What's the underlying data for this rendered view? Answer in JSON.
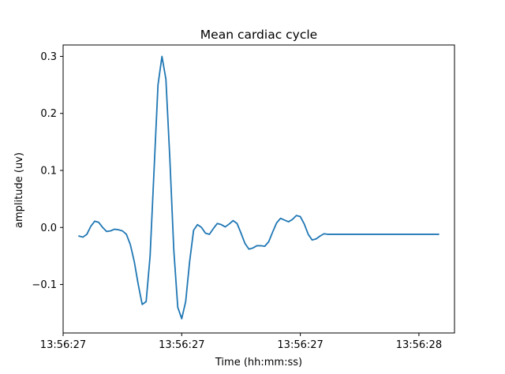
{
  "chart_data": {
    "type": "line",
    "title": "Mean cardiac cycle",
    "xlabel": "Time (hh:mm:ss)",
    "ylabel": "amplitude (uv)",
    "x_tick_labels": [
      "13:56:27",
      "13:56:27",
      "13:56:27",
      "13:56:28"
    ],
    "y_ticks": [
      -0.1,
      0.0,
      0.1,
      0.2,
      0.3
    ],
    "y_tick_labels": [
      "−0.1",
      "0.0",
      "0.1",
      "0.2",
      "0.3"
    ],
    "x_units": "s",
    "x_ticks": [
      0.0,
      0.3,
      0.6,
      0.9
    ],
    "xlim": [
      -0.0,
      0.99
    ],
    "ylim": [
      -0.185,
      0.32
    ],
    "grid": false,
    "series": [
      {
        "color": "#1f77b4",
        "x": [
          0.04,
          0.05,
          0.06,
          0.07,
          0.08,
          0.09,
          0.1,
          0.11,
          0.12,
          0.13,
          0.14,
          0.15,
          0.16,
          0.17,
          0.18,
          0.19,
          0.2,
          0.21,
          0.22,
          0.23,
          0.24,
          0.25,
          0.26,
          0.27,
          0.28,
          0.29,
          0.3,
          0.31,
          0.32,
          0.33,
          0.34,
          0.35,
          0.36,
          0.37,
          0.38,
          0.39,
          0.4,
          0.41,
          0.42,
          0.43,
          0.44,
          0.45,
          0.46,
          0.47,
          0.48,
          0.49,
          0.5,
          0.51,
          0.52,
          0.53,
          0.54,
          0.55,
          0.56,
          0.57,
          0.58,
          0.59,
          0.6,
          0.61,
          0.62,
          0.63,
          0.64,
          0.65,
          0.66,
          0.67,
          0.68,
          0.69,
          0.7,
          0.71,
          0.72,
          0.73,
          0.74,
          0.75,
          0.76,
          0.77,
          0.78,
          0.79,
          0.8,
          0.81,
          0.82,
          0.83,
          0.84,
          0.85,
          0.86,
          0.87,
          0.88,
          0.89,
          0.9,
          0.91,
          0.92,
          0.93,
          0.94,
          0.95
        ],
        "y": [
          -0.015,
          -0.017,
          -0.012,
          0.002,
          0.011,
          0.009,
          0.0,
          -0.007,
          -0.006,
          -0.003,
          -0.004,
          -0.006,
          -0.012,
          -0.03,
          -0.06,
          -0.1,
          -0.135,
          -0.13,
          -0.05,
          0.1,
          0.25,
          0.3,
          0.26,
          0.12,
          -0.04,
          -0.14,
          -0.16,
          -0.13,
          -0.06,
          -0.005,
          0.005,
          0.0,
          -0.01,
          -0.012,
          -0.002,
          0.007,
          0.005,
          0.001,
          0.006,
          0.012,
          0.007,
          -0.01,
          -0.028,
          -0.038,
          -0.036,
          -0.032,
          -0.032,
          -0.033,
          -0.025,
          -0.008,
          0.008,
          0.016,
          0.013,
          0.01,
          0.014,
          0.021,
          0.019,
          0.006,
          -0.012,
          -0.022,
          -0.02,
          -0.015,
          -0.011,
          -0.012,
          -0.012,
          -0.012,
          -0.012,
          -0.012,
          -0.012,
          -0.012,
          -0.012,
          -0.012,
          -0.012,
          -0.012,
          -0.012,
          -0.012,
          -0.012,
          -0.012,
          -0.012,
          -0.012,
          -0.012,
          -0.012,
          -0.012,
          -0.012,
          -0.012,
          -0.012,
          -0.012,
          -0.012,
          -0.012,
          -0.012,
          -0.012,
          -0.012
        ]
      }
    ]
  }
}
